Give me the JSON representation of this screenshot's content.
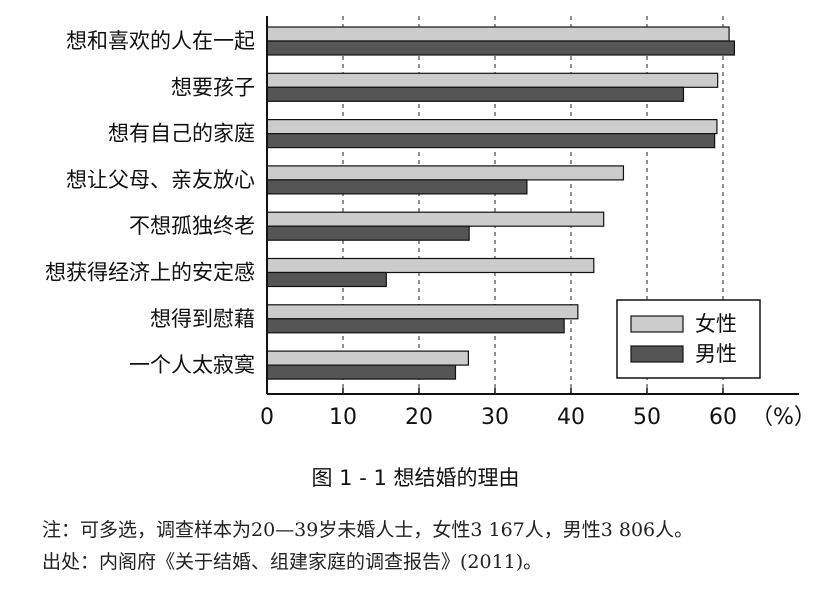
{
  "chart_data": {
    "type": "bar",
    "orientation": "horizontal",
    "categories": [
      "想和喜欢的人在一起",
      "想要孩子",
      "想有自己的家庭",
      "想让父母、亲友放心",
      "不想孤独终老",
      "想获得经济上的安定感",
      "想得到慰藉",
      "一个人太寂寞"
    ],
    "series": [
      {
        "name": "女性",
        "color": "#cccccc",
        "values": [
          60.8,
          59.3,
          59.2,
          46.9,
          44.3,
          43.0,
          40.9,
          26.5
        ]
      },
      {
        "name": "男性",
        "color": "#555555",
        "values": [
          61.5,
          54.8,
          58.9,
          34.2,
          26.6,
          15.7,
          39.1,
          24.8
        ]
      }
    ],
    "xlim": [
      0,
      70
    ],
    "xticks": [
      "0",
      "10",
      "20",
      "30",
      "40",
      "50",
      "60"
    ],
    "unit_label": "（%）",
    "grid": "vertical dashed",
    "legend_position": "bottom-right"
  },
  "figure": {
    "caption": "图 1 - 1    想结婚的理由",
    "note": "注：可多选，调查样本为20—39岁未婚人士，女性3 167人，男性3 806人。",
    "source": "出处：内阁府《关于结婚、组建家庭的调查报告》(2011)。"
  }
}
